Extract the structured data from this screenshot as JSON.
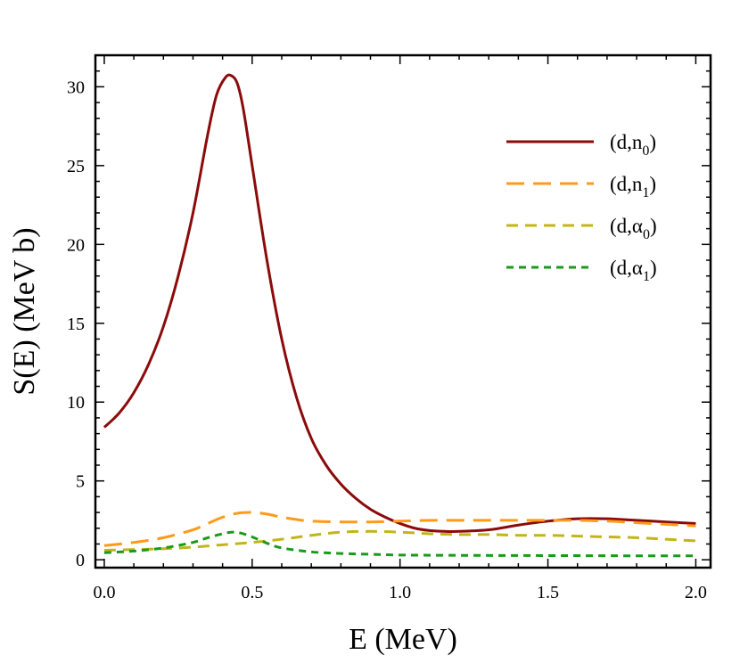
{
  "chart_data": {
    "type": "line",
    "title": "",
    "xlabel": "E (MeV)",
    "ylabel": "S(E) (MeV b)",
    "xlim": [
      -0.03,
      2.05
    ],
    "ylim": [
      -0.5,
      32
    ],
    "xticks": [
      0.0,
      0.5,
      1.0,
      1.5,
      2.0
    ],
    "xtick_labels": [
      "0.0",
      "0.5",
      "1.0",
      "1.5",
      "2.0"
    ],
    "yticks": [
      0,
      5,
      10,
      15,
      20,
      25,
      30
    ],
    "ytick_labels": [
      "0",
      "5",
      "10",
      "15",
      "20",
      "25",
      "30"
    ],
    "legend_position": "top-right",
    "series": [
      {
        "name": "(d,n0)",
        "label_main": "(d,n",
        "label_sub": "0",
        "label_end": ")",
        "color": "#8b0a0a",
        "style": "solid",
        "x": [
          0.0,
          0.05,
          0.1,
          0.15,
          0.2,
          0.25,
          0.3,
          0.35,
          0.38,
          0.41,
          0.43,
          0.45,
          0.47,
          0.5,
          0.55,
          0.6,
          0.65,
          0.7,
          0.75,
          0.8,
          0.85,
          0.9,
          0.95,
          1.0,
          1.05,
          1.1,
          1.15,
          1.2,
          1.3,
          1.4,
          1.5,
          1.6,
          1.7,
          1.8,
          1.9,
          2.0
        ],
        "y": [
          8.4,
          9.3,
          10.6,
          12.4,
          14.8,
          18.0,
          22.0,
          27.0,
          29.5,
          30.6,
          30.7,
          30.2,
          28.6,
          25.0,
          19.0,
          14.0,
          10.3,
          7.7,
          6.0,
          4.8,
          3.9,
          3.2,
          2.7,
          2.3,
          2.0,
          1.85,
          1.8,
          1.8,
          1.9,
          2.2,
          2.45,
          2.6,
          2.6,
          2.5,
          2.4,
          2.3
        ]
      },
      {
        "name": "(d,n1)",
        "label_main": "(d,n",
        "label_sub": "1",
        "label_end": ")",
        "color": "#ff9a1a",
        "style": "long-dash",
        "x": [
          0.0,
          0.1,
          0.2,
          0.3,
          0.35,
          0.4,
          0.45,
          0.5,
          0.55,
          0.6,
          0.65,
          0.7,
          0.8,
          0.9,
          1.0,
          1.1,
          1.2,
          1.3,
          1.4,
          1.5,
          1.6,
          1.7,
          1.8,
          1.9,
          2.0
        ],
        "y": [
          0.9,
          1.1,
          1.4,
          1.9,
          2.3,
          2.7,
          2.95,
          3.0,
          2.9,
          2.7,
          2.55,
          2.45,
          2.4,
          2.4,
          2.45,
          2.5,
          2.5,
          2.5,
          2.5,
          2.5,
          2.5,
          2.45,
          2.35,
          2.25,
          2.15
        ]
      },
      {
        "name": "(d,α0)",
        "label_main": "(d,α",
        "label_sub": "0",
        "label_end": ")",
        "color": "#c2b51a",
        "style": "dash",
        "x": [
          0.0,
          0.1,
          0.2,
          0.3,
          0.4,
          0.5,
          0.6,
          0.7,
          0.8,
          0.9,
          1.0,
          1.1,
          1.2,
          1.3,
          1.4,
          1.5,
          1.6,
          1.7,
          1.8,
          1.9,
          2.0
        ],
        "y": [
          0.6,
          0.65,
          0.7,
          0.8,
          0.95,
          1.1,
          1.3,
          1.55,
          1.75,
          1.8,
          1.75,
          1.65,
          1.6,
          1.6,
          1.55,
          1.55,
          1.5,
          1.45,
          1.4,
          1.3,
          1.2
        ]
      },
      {
        "name": "(d,α1)",
        "label_main": "(d,α",
        "label_sub": "1",
        "label_end": ")",
        "color": "#1a9a1a",
        "style": "short-dash",
        "x": [
          0.0,
          0.1,
          0.2,
          0.3,
          0.35,
          0.4,
          0.43,
          0.46,
          0.5,
          0.55,
          0.6,
          0.7,
          0.8,
          0.9,
          1.0,
          1.2,
          1.4,
          1.6,
          1.8,
          2.0
        ],
        "y": [
          0.45,
          0.55,
          0.75,
          1.1,
          1.4,
          1.65,
          1.75,
          1.7,
          1.45,
          1.05,
          0.75,
          0.5,
          0.4,
          0.35,
          0.3,
          0.28,
          0.27,
          0.26,
          0.25,
          0.25
        ]
      }
    ]
  }
}
